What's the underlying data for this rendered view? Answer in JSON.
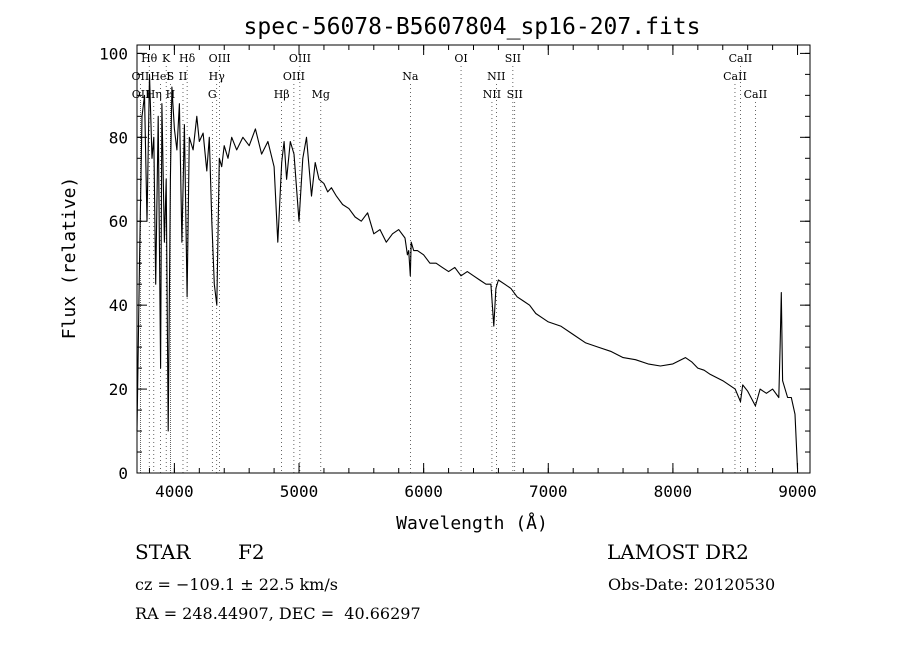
{
  "chart_data": {
    "type": "line",
    "title": "spec-56078-B5607804_sp16-207.fits",
    "xlabel": "Wavelength (Å)",
    "ylabel": "Flux (relative)",
    "xlim": [
      3700,
      9100
    ],
    "ylim": [
      0,
      102
    ],
    "xticks": [
      4000,
      5000,
      6000,
      7000,
      8000,
      9000
    ],
    "yticks": [
      0,
      20,
      40,
      60,
      80,
      100
    ],
    "minor_x_step": 200,
    "minor_y_step": 5,
    "grid": false,
    "line_color": "#000000",
    "series": [
      {
        "x": [
          3700,
          3720,
          3740,
          3760,
          3780,
          3800,
          3820,
          3835,
          3850,
          3870,
          3889,
          3900,
          3920,
          3934,
          3950,
          3968,
          3980,
          4000,
          4020,
          4040,
          4060,
          4080,
          4102,
          4120,
          4150,
          4180,
          4200,
          4230,
          4260,
          4280,
          4300,
          4320,
          4340,
          4360,
          4380,
          4400,
          4430,
          4460,
          4500,
          4550,
          4600,
          4650,
          4700,
          4750,
          4800,
          4830,
          4861,
          4880,
          4900,
          4930,
          4960,
          5000,
          5030,
          5060,
          5100,
          5130,
          5160,
          5200,
          5230,
          5260,
          5300,
          5350,
          5400,
          5450,
          5500,
          5550,
          5600,
          5650,
          5700,
          5750,
          5800,
          5850,
          5870,
          5880,
          5893,
          5900,
          5920,
          5950,
          6000,
          6050,
          6100,
          6150,
          6200,
          6250,
          6300,
          6350,
          6400,
          6450,
          6500,
          6540,
          6563,
          6580,
          6600,
          6650,
          6700,
          6750,
          6800,
          6850,
          6900,
          6950,
          7000,
          7100,
          7200,
          7300,
          7400,
          7500,
          7600,
          7700,
          7800,
          7900,
          8000,
          8100,
          8150,
          8200,
          8250,
          8300,
          8400,
          8500,
          8542,
          8560,
          8600,
          8662,
          8700,
          8750,
          8800,
          8850,
          8860,
          8870,
          8880,
          8900,
          8920,
          8950,
          8980,
          9000
        ],
        "values": [
          10,
          50,
          85,
          90,
          60,
          95,
          75,
          80,
          45,
          85,
          25,
          88,
          55,
          70,
          10,
          70,
          92,
          82,
          77,
          88,
          55,
          83,
          42,
          80,
          77,
          85,
          79,
          81,
          72,
          80,
          60,
          45,
          40,
          75,
          73,
          78,
          75,
          80,
          77,
          80,
          78,
          82,
          76,
          79,
          73,
          55,
          74,
          79,
          70,
          79,
          76,
          60,
          75,
          80,
          66,
          74,
          70,
          69,
          67,
          68,
          66,
          64,
          63,
          61,
          60,
          62,
          57,
          58,
          55,
          57,
          58,
          56,
          52,
          53,
          47,
          55,
          53,
          53,
          52,
          50,
          50,
          49,
          48,
          49,
          47,
          48,
          47,
          46,
          45,
          45,
          35,
          44,
          46,
          45,
          44,
          42,
          41,
          40,
          38,
          37,
          36,
          35,
          33,
          31,
          30,
          29,
          27.5,
          27,
          26,
          25.5,
          26,
          27.5,
          26.5,
          25,
          24.5,
          23.5,
          22,
          20,
          17,
          21,
          19.5,
          16,
          20,
          19,
          20,
          18,
          30,
          43,
          22,
          20,
          18,
          18,
          14,
          1
        ]
      }
    ],
    "line_groups": [
      {
        "row": 1,
        "labels": [
          {
            "text": "Hθ",
            "x": 3798
          },
          {
            "text": "K",
            "x": 3934
          },
          {
            "text": "Hδ",
            "x": 4102
          },
          {
            "text": "OIII",
            "x": 4363
          },
          {
            "text": "OIII",
            "x": 5007
          },
          {
            "text": "OI",
            "x": 6300
          },
          {
            "text": "SII",
            "x": 6716
          },
          {
            "text": "CaII",
            "x": 8542
          }
        ]
      },
      {
        "row": 2,
        "labels": [
          {
            "text": "OII",
            "x": 3727
          },
          {
            "text": "HeI",
            "x": 3889
          },
          {
            "text": "S",
            "x": 3968
          },
          {
            "text": "II",
            "x": 4069
          },
          {
            "text": "Hγ",
            "x": 4340
          },
          {
            "text": "OIII",
            "x": 4959
          },
          {
            "text": "Na",
            "x": 5893
          },
          {
            "text": "NII",
            "x": 6583
          },
          {
            "text": "CaII",
            "x": 8498
          }
        ]
      },
      {
        "row": 3,
        "labels": [
          {
            "text": "OII",
            "x": 3729
          },
          {
            "text": "Hη",
            "x": 3835
          },
          {
            "text": "H",
            "x": 3968
          },
          {
            "text": "G",
            "x": 4304
          },
          {
            "text": "Hβ",
            "x": 4861
          },
          {
            "text": "Mg",
            "x": 5175
          },
          {
            "text": "NII",
            "x": 6548
          },
          {
            "text": "SII",
            "x": 6731
          },
          {
            "text": "CaII",
            "x": 8662
          }
        ]
      }
    ]
  },
  "info": {
    "obj_type": "STAR",
    "subclass": "F2",
    "survey": "LAMOST DR2",
    "redshift": "cz = −109.1 ± 22.5 km/s",
    "obs_date": "Obs-Date: 20120530",
    "coords": "RA = 248.44907, DEC =  40.66297"
  }
}
